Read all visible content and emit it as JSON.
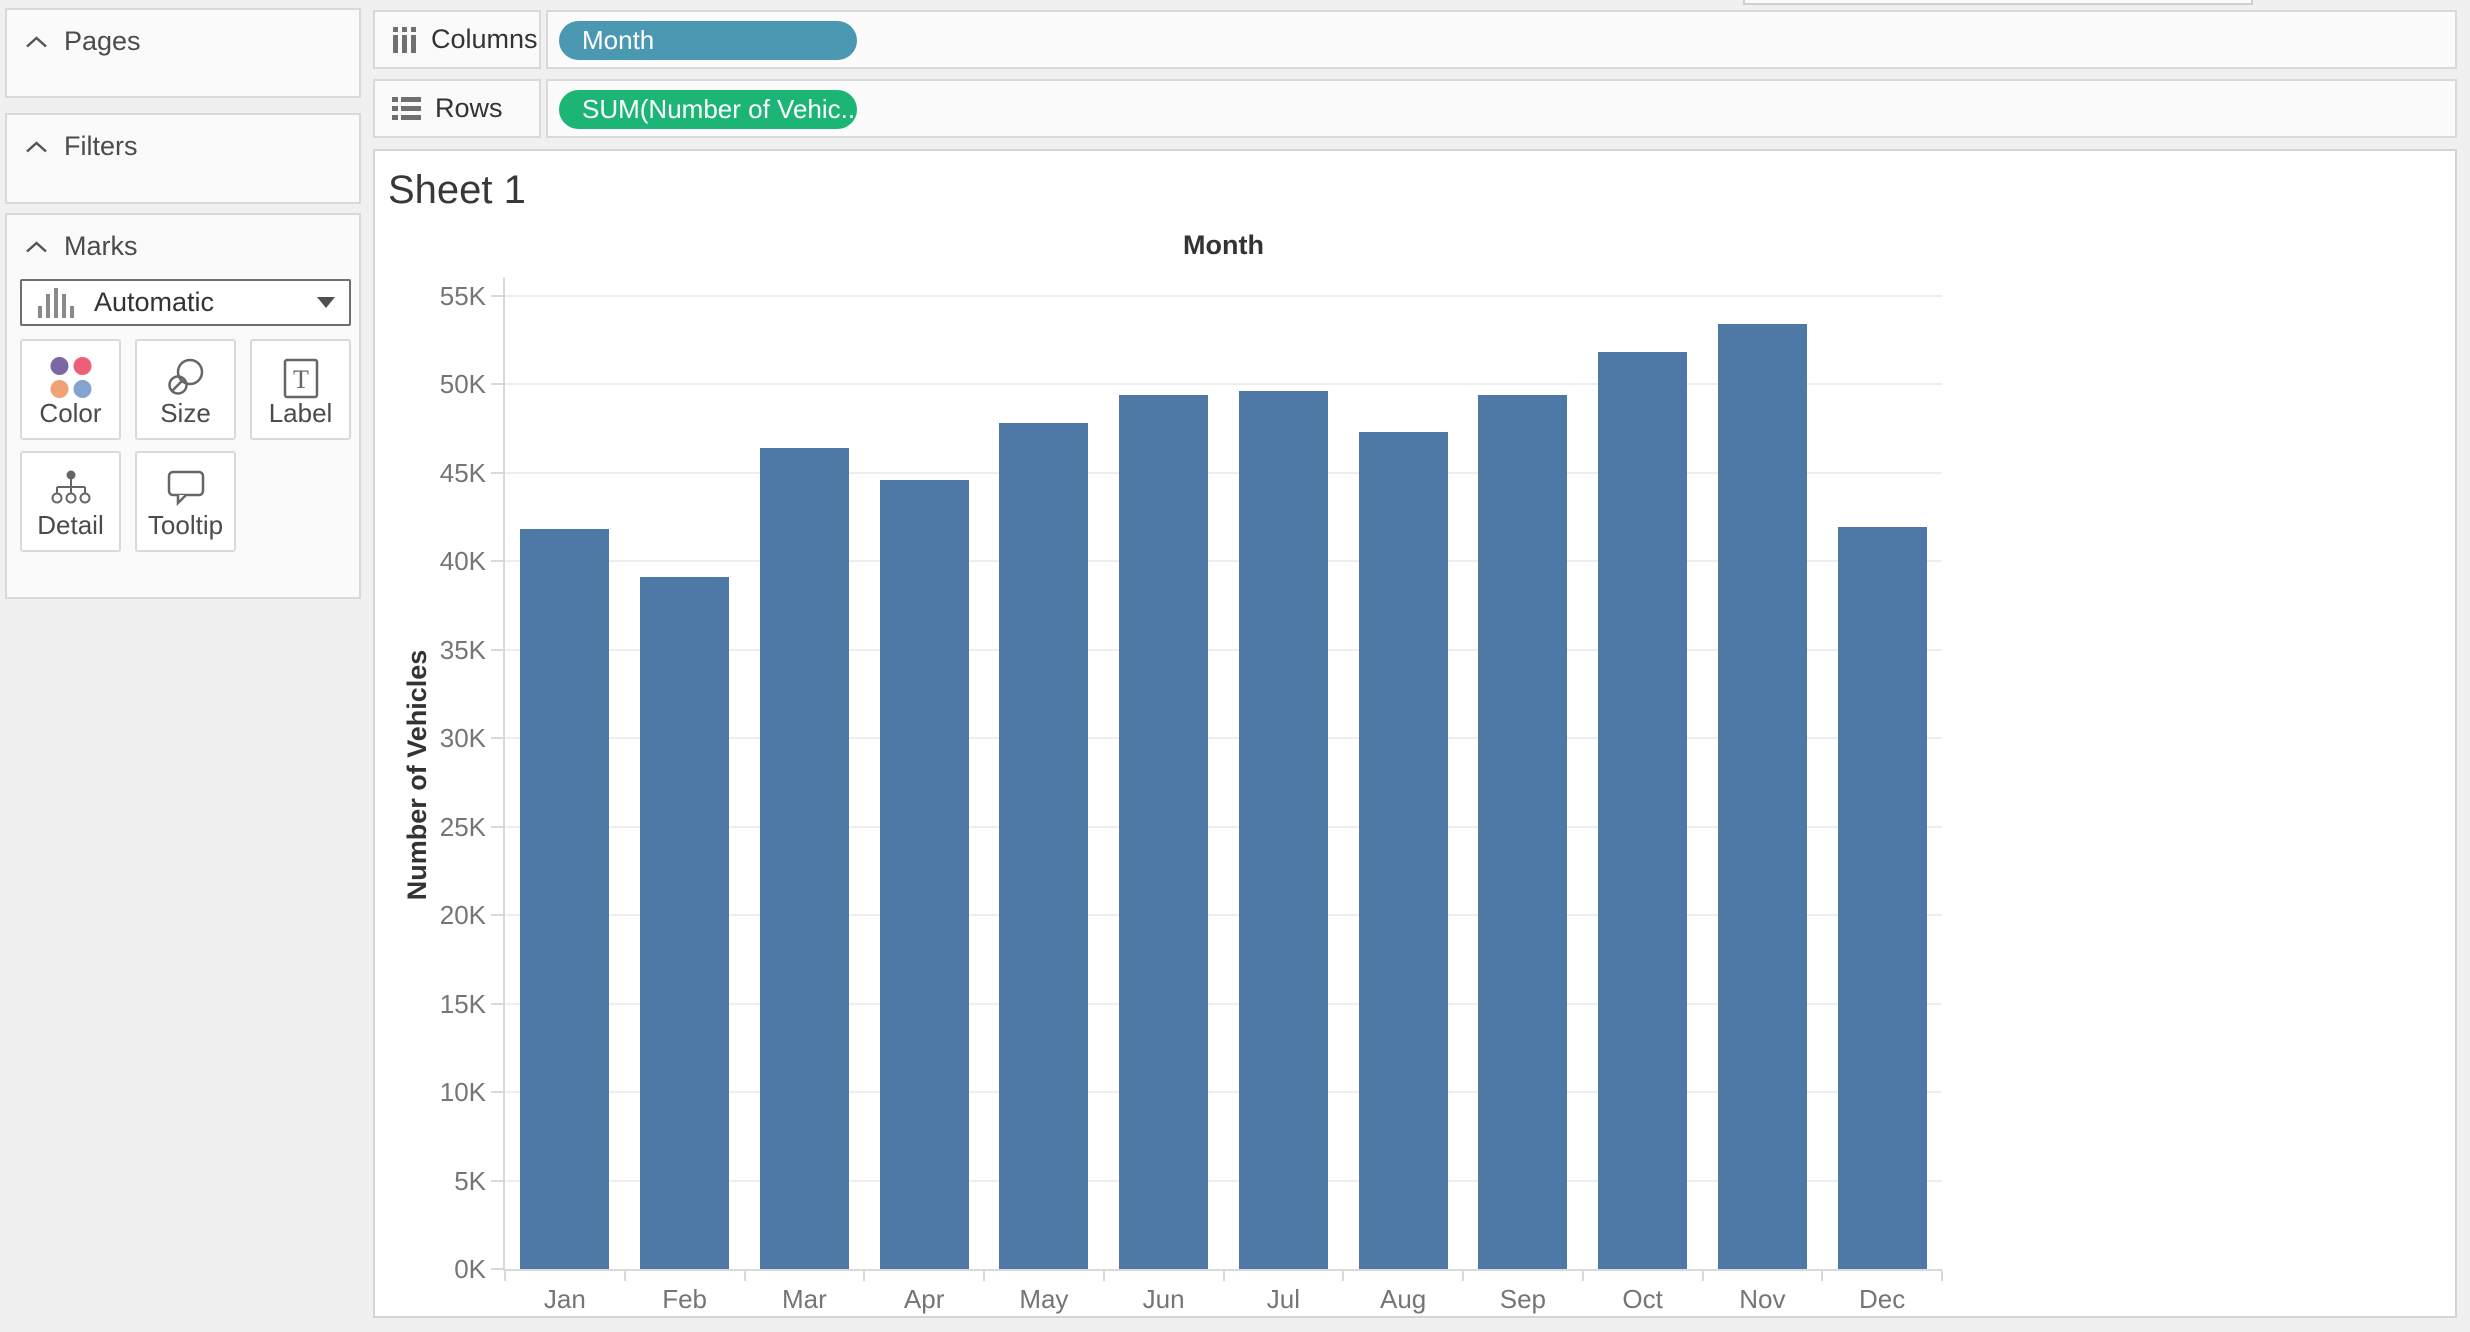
{
  "sheet": {
    "title": "Sheet 1"
  },
  "panels": {
    "pages_title": "Pages",
    "filters_title": "Filters",
    "marks_title": "Marks",
    "mark_type": "Automatic",
    "mark_buttons": [
      {
        "label": "Color"
      },
      {
        "label": "Size"
      },
      {
        "label": "Label"
      },
      {
        "label": "Detail"
      },
      {
        "label": "Tooltip"
      }
    ]
  },
  "shelves": {
    "columns_label": "Columns",
    "rows_label": "Rows",
    "columns_pills": [
      {
        "label": "Month"
      }
    ],
    "rows_pills": [
      {
        "label": "SUM(Number of Vehic..."
      }
    ]
  },
  "chart_data": {
    "type": "bar",
    "title": "Month",
    "xlabel": "Month",
    "ylabel": "Number of Vehicles",
    "categories": [
      "Jan",
      "Feb",
      "Mar",
      "Apr",
      "May",
      "Jun",
      "Jul",
      "Aug",
      "Sep",
      "Oct",
      "Nov",
      "Dec"
    ],
    "values": [
      41800,
      39100,
      46400,
      44600,
      47800,
      49400,
      49600,
      47300,
      49400,
      51800,
      53400,
      41900
    ],
    "ylim": [
      0,
      57000
    ],
    "ytick_step": 5000,
    "ytick_labels": [
      "0K",
      "5K",
      "10K",
      "15K",
      "20K",
      "25K",
      "30K",
      "35K",
      "40K",
      "45K",
      "50K",
      "55K"
    ],
    "grid": true,
    "legend": "none"
  },
  "colors": {
    "bar": "#4e79a7",
    "dimension_pill": "#4a98b1",
    "measure_pill": "#1cb576",
    "color_icon_dots": [
      "#7c67a5",
      "#ee5f77",
      "#f0a176",
      "#85a3cf"
    ]
  }
}
